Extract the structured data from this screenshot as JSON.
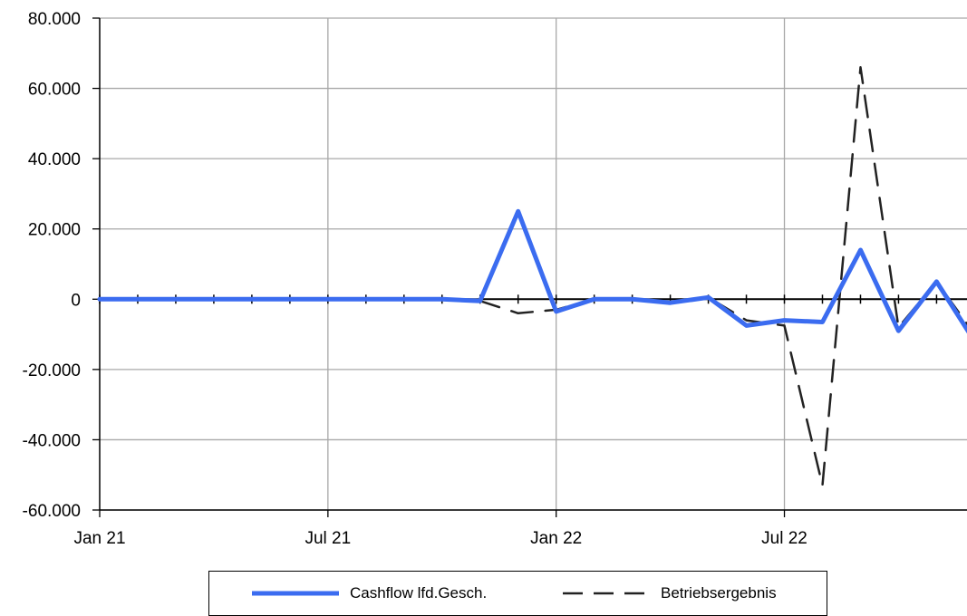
{
  "chart_data": {
    "type": "line",
    "x_tick_labels": [
      "Jan 21",
      "Jul 21",
      "Jan 22",
      "Jul 22"
    ],
    "y_tick_labels": [
      "80.000",
      "60.000",
      "40.000",
      "20.000",
      "0",
      "-20.000",
      "-40.000",
      "-60.000"
    ],
    "ylim": [
      -60000,
      80000
    ],
    "x": [
      "2021-01",
      "2021-02",
      "2021-03",
      "2021-04",
      "2021-05",
      "2021-06",
      "2021-07",
      "2021-08",
      "2021-09",
      "2021-10",
      "2021-11",
      "2021-12",
      "2022-01",
      "2022-02",
      "2022-03",
      "2022-04",
      "2022-05",
      "2022-06",
      "2022-07",
      "2022-08",
      "2022-09",
      "2022-10",
      "2022-11",
      "2022-12"
    ],
    "series": [
      {
        "name": "Cashflow lfd.Gesch.",
        "color": "#3b6cf0",
        "style": "solid",
        "values": [
          0,
          0,
          0,
          0,
          0,
          0,
          0,
          0,
          0,
          0,
          -500,
          25000,
          -3500,
          0,
          0,
          -1000,
          500,
          -7500,
          -6000,
          -6500,
          14000,
          -9000,
          5000,
          -12000
        ]
      },
      {
        "name": "Betriebsergebnis",
        "color": "#222222",
        "style": "dashed",
        "values": [
          0,
          0,
          0,
          0,
          0,
          0,
          0,
          0,
          0,
          0,
          -500,
          -4000,
          -3000,
          0,
          0,
          -1000,
          500,
          -6000,
          -7500,
          -53000,
          66000,
          -8000,
          5000,
          -10000
        ]
      }
    ],
    "grid": true,
    "legend_position": "bottom"
  }
}
